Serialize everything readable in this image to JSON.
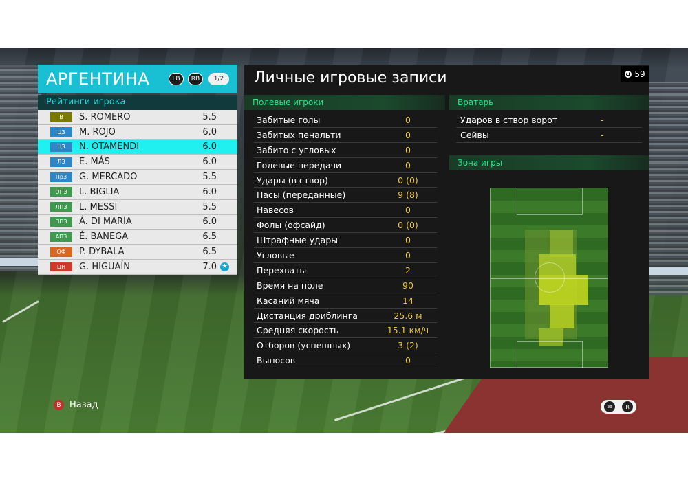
{
  "team": {
    "name": "АРГЕНТИНА",
    "lb": "LB",
    "rb": "RB",
    "page": "1/2"
  },
  "ratings_title": "Рейтинги игрока",
  "players": [
    {
      "pos": "В",
      "pos_color": "#7a7a00",
      "name": "S. ROMERO",
      "rating": "5.5"
    },
    {
      "pos": "ЦЗ",
      "pos_color": "#2f86c7",
      "name": "M. ROJO",
      "rating": "6.0"
    },
    {
      "pos": "ЦЗ",
      "pos_color": "#2f86c7",
      "name": "N. OTAMENDI",
      "rating": "6.0",
      "selected": true
    },
    {
      "pos": "ЛЗ",
      "pos_color": "#2f86c7",
      "name": "E. MÁS",
      "rating": "6.0"
    },
    {
      "pos": "ПрЗ",
      "pos_color": "#2f86c7",
      "name": "G. MERCADO",
      "rating": "5.5"
    },
    {
      "pos": "ОПЗ",
      "pos_color": "#3f9a4f",
      "name": "L. BIGLIA",
      "rating": "6.0"
    },
    {
      "pos": "ЛПЗ",
      "pos_color": "#3f9a4f",
      "name": "L. MESSI",
      "rating": "5.5"
    },
    {
      "pos": "ППЗ",
      "pos_color": "#3f9a4f",
      "name": "Á. DI MARÍA",
      "rating": "6.0"
    },
    {
      "pos": "АПЗ",
      "pos_color": "#3f9a4f",
      "name": "É. BANEGA",
      "rating": "6.5"
    },
    {
      "pos": "ОФ",
      "pos_color": "#d76722",
      "name": "P. DYBALA",
      "rating": "6.5"
    },
    {
      "pos": "ЦН",
      "pos_color": "#d03a2c",
      "name": "G. HIGUAÍN",
      "rating": "7.0",
      "star": true
    }
  ],
  "main_title": "Личные игровые записи",
  "timer": "59",
  "field_header": "Полевые игроки",
  "field_stats": [
    {
      "label": "Забитые голы",
      "value": "0"
    },
    {
      "label": "Забитых пенальти",
      "value": "0"
    },
    {
      "label": "Забито с угловых",
      "value": "0"
    },
    {
      "label": "Голевые передачи",
      "value": "0"
    },
    {
      "label": "Удары (в створ)",
      "value": "0 (0)"
    },
    {
      "label": "Пасы (переданные)",
      "value": "9 (8)"
    },
    {
      "label": "Навесов",
      "value": "0"
    },
    {
      "label": "Фолы (офсайд)",
      "value": "0 (0)"
    },
    {
      "label": "Штрафные удары",
      "value": "0"
    },
    {
      "label": "Угловые",
      "value": "0"
    },
    {
      "label": "Перехваты",
      "value": "2"
    },
    {
      "label": "Время на поле",
      "value": "90"
    },
    {
      "label": "Касаний мяча",
      "value": "14"
    },
    {
      "label": "Дистанция дриблинга",
      "value": "25.6 м"
    },
    {
      "label": "Средняя скорость",
      "value": "15.1 км/ч"
    },
    {
      "label": "Отборов (успешных)",
      "value": "3 (2)"
    },
    {
      "label": "Выносов",
      "value": "0"
    }
  ],
  "gk_header": "Вратарь",
  "gk_stats": [
    {
      "label": "Ударов в створ ворот",
      "value": "-"
    },
    {
      "label": "Сейвы",
      "value": "-"
    }
  ],
  "zone_header": "Зона игры",
  "back_label": "Назад",
  "colors": {
    "accent": "#19bfd3",
    "stat_value": "#e9c73c",
    "section": "#28e58c"
  }
}
